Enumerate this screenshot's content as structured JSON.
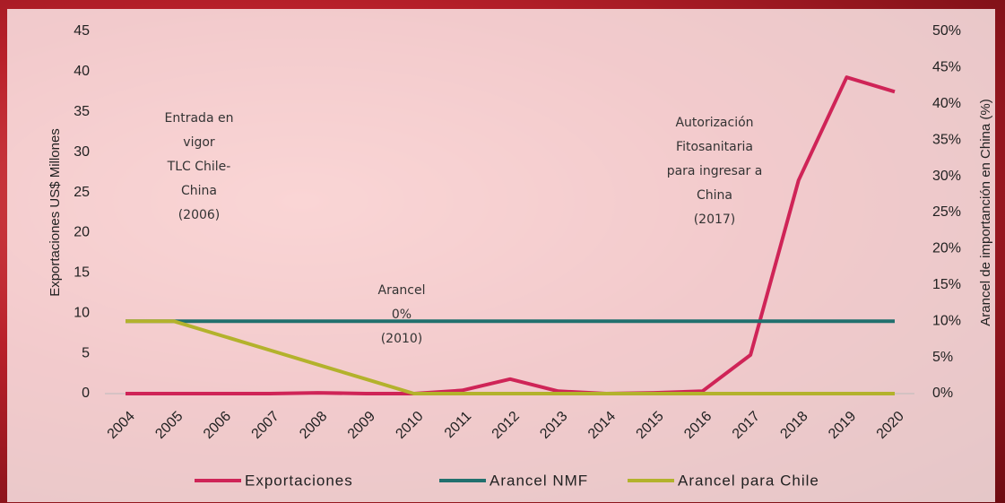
{
  "chart_data": {
    "type": "line",
    "y_label": "Exportaciones US$ Millones",
    "y2_label": "Arancel de importanción en China (%)",
    "categories": [
      "2004",
      "2005",
      "2006",
      "2007",
      "2008",
      "2009",
      "2010",
      "2011",
      "2012",
      "2013",
      "2014",
      "2015",
      "2016",
      "2017",
      "2018",
      "2019",
      "2020"
    ],
    "series": [
      {
        "name": "Exportaciones",
        "color": "#cf2457",
        "values": [
          0,
          0,
          0,
          0,
          0.1,
          0,
          0,
          0.4,
          1.8,
          0.3,
          0,
          0.1,
          0.3,
          4.8,
          26.5,
          39.3,
          37.5
        ]
      },
      {
        "name": "Arancel NMF",
        "color": "#21706e",
        "axis": "y2",
        "values": [
          10,
          10,
          10,
          10,
          10,
          10,
          10,
          10,
          10,
          10,
          10,
          10,
          10,
          10,
          10,
          10,
          10
        ]
      },
      {
        "name": "Arancel para Chile",
        "color": "#b3b22c",
        "axis": "y2",
        "values": [
          10,
          10,
          8,
          6,
          4,
          2,
          0,
          0,
          0,
          0,
          0,
          0,
          0,
          0,
          0,
          0,
          0
        ]
      }
    ],
    "ylim": [
      0,
      45
    ],
    "yticks": [
      0,
      5,
      10,
      15,
      20,
      25,
      30,
      35,
      40,
      45
    ],
    "y2lim": [
      0,
      50
    ],
    "y2ticks": [
      {
        "value": 0,
        "label": "0%"
      },
      {
        "value": 5,
        "label": "5%"
      },
      {
        "value": 10,
        "label": "10%"
      },
      {
        "value": 15,
        "label": "15%"
      },
      {
        "value": 20,
        "label": "20%"
      },
      {
        "value": 25,
        "label": "25%"
      },
      {
        "value": 30,
        "label": "30%"
      },
      {
        "value": 35,
        "label": "35%"
      },
      {
        "value": 40,
        "label": "40%"
      },
      {
        "value": 45,
        "label": "45%"
      },
      {
        "value": 50,
        "label": "50%"
      }
    ],
    "annotations": [
      [
        "Entrada en",
        "vigor",
        "TLC Chile-",
        "China",
        "(2006)"
      ],
      [
        "Autorización",
        "Fitosanitaria",
        "para ingresar a",
        "China",
        "(2017)"
      ],
      [
        "Arancel",
        "0%",
        "(2010)"
      ]
    ],
    "legend": "bottom"
  }
}
